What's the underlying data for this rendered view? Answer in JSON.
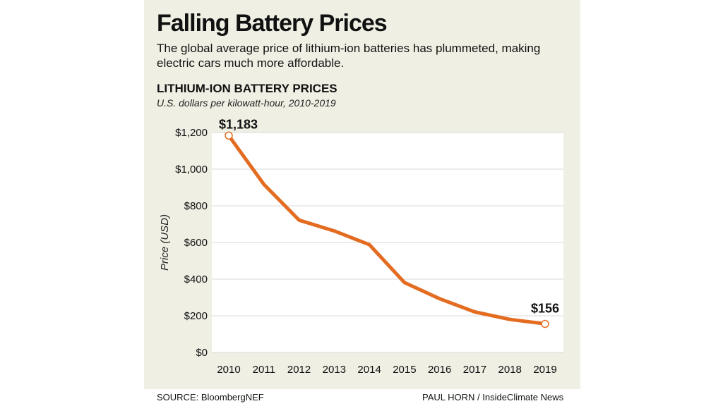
{
  "header": {
    "title": "Falling Battery Prices",
    "subtitle": "The global average price of lithium-ion batteries has plummeted, making electric cars much more affordable."
  },
  "footer": {
    "source": "SOURCE: BloombergNEF",
    "credit": "PAUL HORN / InsideClimate News"
  },
  "colors": {
    "line": "#e36c21",
    "panel": "#efefe4",
    "plot_bg": "#ffffff",
    "grid": "#d9d9d9"
  },
  "chart_data": {
    "type": "line",
    "title": "LITHIUM-ION BATTERY PRICES",
    "subtitle": "U.S. dollars per kilowatt-hour, 2010-2019",
    "xlabel": "",
    "ylabel": "Price (USD)",
    "x": [
      "2010",
      "2011",
      "2012",
      "2013",
      "2014",
      "2015",
      "2016",
      "2017",
      "2018",
      "2019"
    ],
    "series": [
      {
        "values": [
          1183,
          917,
          722,
          663,
          588,
          381,
          293,
          221,
          180,
          156
        ]
      }
    ],
    "ylim": [
      0,
      1200
    ],
    "yticks": [
      0,
      200,
      400,
      600,
      800,
      1000,
      1200
    ],
    "ytick_labels": [
      "$0",
      "$200",
      "$400",
      "$600",
      "$800",
      "$1,000",
      "$1,200"
    ],
    "grid": true,
    "annotations": [
      {
        "x": "2010",
        "y": 1183,
        "text": "$1,183"
      },
      {
        "x": "2019",
        "y": 156,
        "text": "$156"
      }
    ]
  }
}
